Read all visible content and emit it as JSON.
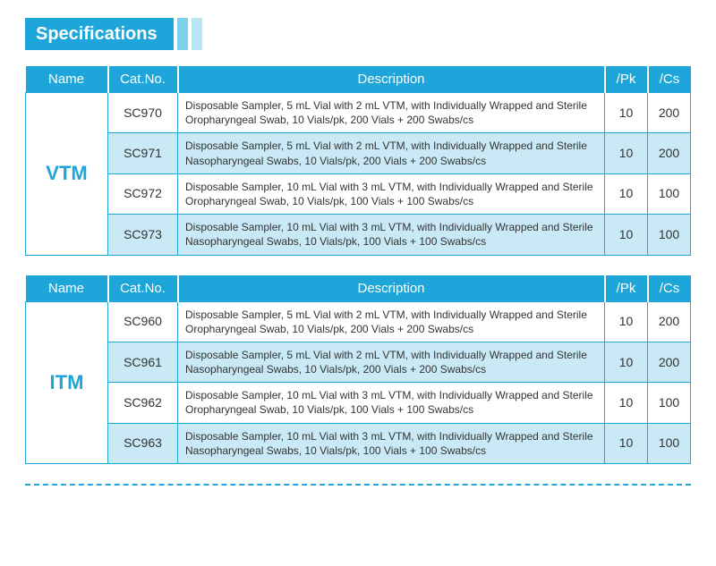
{
  "header": {
    "title": "Specifications"
  },
  "columns": {
    "name": "Name",
    "cat": "Cat.No.",
    "desc": "Description",
    "pk": "/Pk",
    "cs": "/Cs"
  },
  "colors": {
    "brand": "#1ea5d9",
    "stripe1": "#7fd0ea",
    "stripe2": "#b9e4f3",
    "alt_row": "#c8e9f5",
    "text": "#333333",
    "background": "#ffffff"
  },
  "tables": [
    {
      "name": "VTM",
      "rows": [
        {
          "cat": "SC970",
          "desc": "Disposable Sampler, 5 mL Vial with 2 mL VTM, with Individually Wrapped and Sterile Oropharyngeal Swab, 10 Vials/pk, 200 Vials + 200 Swabs/cs",
          "pk": "10",
          "cs": "200"
        },
        {
          "cat": "SC971",
          "desc": "Disposable Sampler, 5 mL Vial with 2 mL VTM, with Individually Wrapped and Sterile Nasopharyngeal Swabs, 10 Vials/pk, 200 Vials + 200 Swabs/cs",
          "pk": "10",
          "cs": "200"
        },
        {
          "cat": "SC972",
          "desc": "Disposable Sampler, 10 mL Vial with 3 mL VTM, with Individually Wrapped and Sterile Oropharyngeal Swab, 10 Vials/pk, 100 Vials + 100 Swabs/cs",
          "pk": "10",
          "cs": "100"
        },
        {
          "cat": "SC973",
          "desc": "Disposable Sampler, 10 mL Vial with 3 mL VTM, with Individually Wrapped and Sterile Nasopharyngeal Swabs, 10 Vials/pk, 100 Vials + 100 Swabs/cs",
          "pk": "10",
          "cs": "100"
        }
      ]
    },
    {
      "name": "ITM",
      "rows": [
        {
          "cat": "SC960",
          "desc": "Disposable Sampler, 5 mL Vial with 2 mL VTM, with Individually Wrapped and Sterile Oropharyngeal Swab, 10 Vials/pk, 200 Vials + 200 Swabs/cs",
          "pk": "10",
          "cs": "200"
        },
        {
          "cat": "SC961",
          "desc": "Disposable Sampler, 5 mL Vial with 2 mL VTM, with Individually Wrapped and Sterile Nasopharyngeal Swabs, 10 Vials/pk, 200 Vials + 200 Swabs/cs",
          "pk": "10",
          "cs": "200"
        },
        {
          "cat": "SC962",
          "desc": "Disposable Sampler, 10 mL Vial with 3 mL VTM, with Individually Wrapped and Sterile Oropharyngeal Swab, 10 Vials/pk, 100 Vials + 100 Swabs/cs",
          "pk": "10",
          "cs": "100"
        },
        {
          "cat": "SC963",
          "desc": "Disposable Sampler, 10 mL Vial with 3 mL VTM, with Individually Wrapped and Sterile Nasopharyngeal Swabs, 10 Vials/pk, 100 Vials + 100 Swabs/cs",
          "pk": "10",
          "cs": "100"
        }
      ]
    }
  ]
}
